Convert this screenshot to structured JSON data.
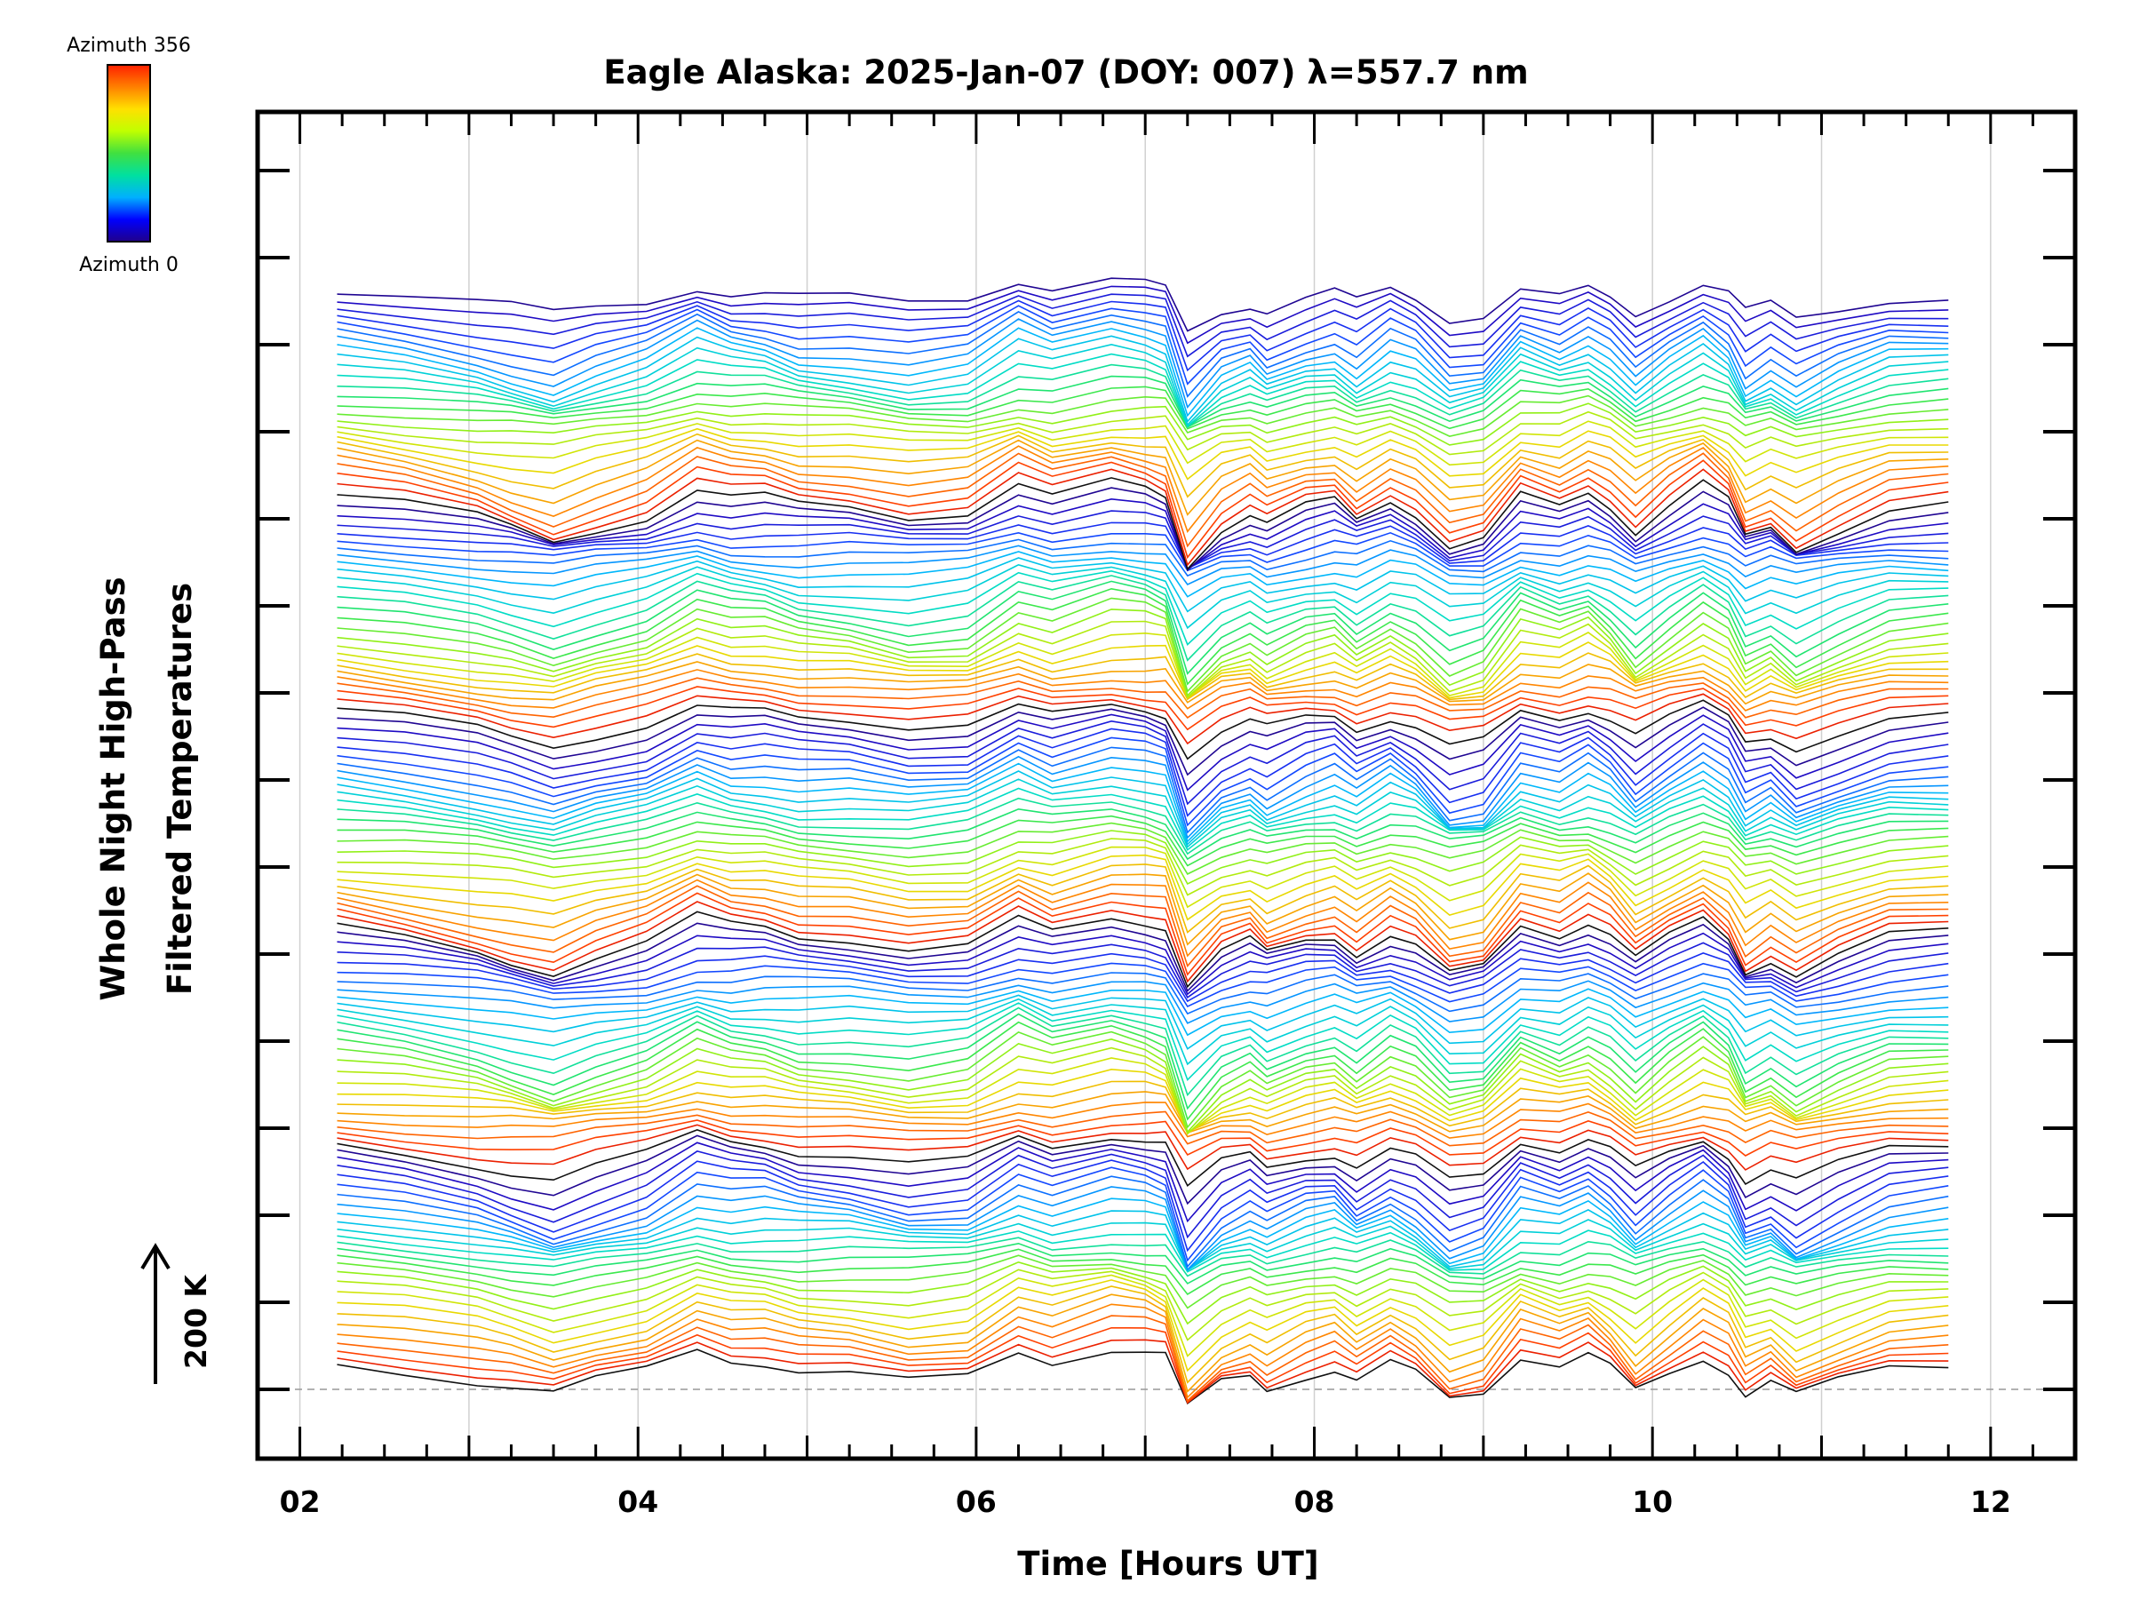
{
  "chart_data": {
    "type": "line",
    "title": "Eagle Alaska: 2025-Jan-07 (DOY: 007) λ=557.7 nm",
    "xlabel": "Time [Hours UT]",
    "ylabel_line1": "Whole Night High-Pass",
    "ylabel_line2": "Filtered Temperatures",
    "xlim": [
      1.75,
      12.5
    ],
    "x_ticks": [
      2,
      4,
      6,
      8,
      10,
      12
    ],
    "x_tick_labels": [
      "02",
      "04",
      "06",
      "08",
      "10",
      "12"
    ],
    "grid": "vertical-at-hours",
    "scale_bar_label": "200 K",
    "colorbar": {
      "top_label": "Azimuth 356",
      "bottom_label": "Azimuth 0",
      "colormap": "rainbow",
      "colors": [
        "#20008a",
        "#0000ff",
        "#00b0ff",
        "#00e0a0",
        "#40e040",
        "#c0ff00",
        "#ffe000",
        "#ff8000",
        "#ff2000"
      ]
    },
    "n_traces": 130,
    "x": [
      2.22,
      2.62,
      3.05,
      3.25,
      3.5,
      3.75,
      4.05,
      4.35,
      4.55,
      4.75,
      4.95,
      5.25,
      5.6,
      5.95,
      6.25,
      6.45,
      6.8,
      7.0,
      7.12,
      7.25,
      7.45,
      7.62,
      7.72,
      7.95,
      8.12,
      8.25,
      8.45,
      8.6,
      8.8,
      9.0,
      9.22,
      9.45,
      9.62,
      9.75,
      9.9,
      10.1,
      10.3,
      10.45,
      10.55,
      10.7,
      10.85,
      11.1,
      11.4,
      11.75
    ],
    "profile_K": [
      5,
      -9,
      -30,
      -44,
      -62,
      -40,
      -20,
      22,
      6,
      4,
      -10,
      -14,
      -30,
      -22,
      24,
      4,
      28,
      20,
      10,
      -94,
      -40,
      -22,
      -42,
      -16,
      -6,
      -32,
      0,
      -20,
      -70,
      -58,
      10,
      -8,
      14,
      -8,
      -50,
      -12,
      20,
      -8,
      -60,
      -40,
      -70,
      -40,
      -10,
      -4
    ]
  }
}
